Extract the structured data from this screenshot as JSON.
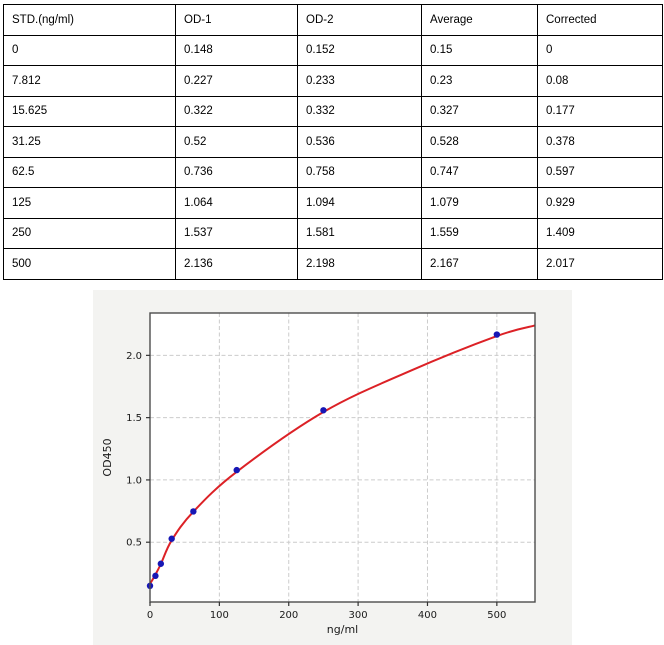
{
  "table": {
    "columns": [
      "STD.(ng/ml)",
      "OD-1",
      "OD-2",
      "Average",
      "Corrected"
    ],
    "rows": [
      [
        "0",
        "0.148",
        "0.152",
        "0.15",
        "0"
      ],
      [
        "7.812",
        "0.227",
        "0.233",
        "0.23",
        "0.08"
      ],
      [
        "15.625",
        "0.322",
        "0.332",
        "0.327",
        "0.177"
      ],
      [
        "31.25",
        "0.52",
        "0.536",
        "0.528",
        "0.378"
      ],
      [
        "62.5",
        "0.736",
        "0.758",
        "0.747",
        "0.597"
      ],
      [
        "125",
        "1.064",
        "1.094",
        "1.079",
        "0.929"
      ],
      [
        "250",
        "1.537",
        "1.581",
        "1.559",
        "1.409"
      ],
      [
        "500",
        "2.136",
        "2.198",
        "2.167",
        "2.017"
      ]
    ]
  },
  "chart_data": {
    "type": "scatter",
    "title": "",
    "xlabel": "ng/ml",
    "ylabel": "OD450",
    "xlim": [
      0,
      555
    ],
    "ylim": [
      0.02,
      2.34
    ],
    "grid": true,
    "x_ticks": [
      0,
      100,
      200,
      300,
      400,
      500
    ],
    "x_tick_labels": [
      "0",
      "100",
      "200",
      "300",
      "400",
      "500"
    ],
    "y_ticks": [
      0.5,
      1.0,
      1.5,
      2.0
    ],
    "y_tick_labels": [
      "0.5",
      "1.0",
      "1.5",
      "2.0"
    ],
    "points": {
      "x": [
        0,
        7.812,
        15.625,
        31.25,
        62.5,
        125,
        250,
        500
      ],
      "y": [
        0.15,
        0.23,
        0.327,
        0.528,
        0.747,
        1.079,
        1.559,
        2.167
      ]
    },
    "fit_curve": {
      "x": [
        0,
        7.812,
        15.625,
        31.25,
        62.5,
        125,
        250,
        375,
        500,
        555
      ],
      "y": [
        0.165,
        0.24,
        0.325,
        0.515,
        0.745,
        1.065,
        1.545,
        1.875,
        2.155,
        2.24
      ]
    },
    "colors": {
      "figure_bg": "#f3f3f1",
      "plot_bg": "#ffffff",
      "spine": "#4c4c4c",
      "grid": "#cccccc",
      "tick": "#333333",
      "text": "#1a1a1a",
      "curve": "#dc2126",
      "point_fill": "#1717b5"
    }
  }
}
